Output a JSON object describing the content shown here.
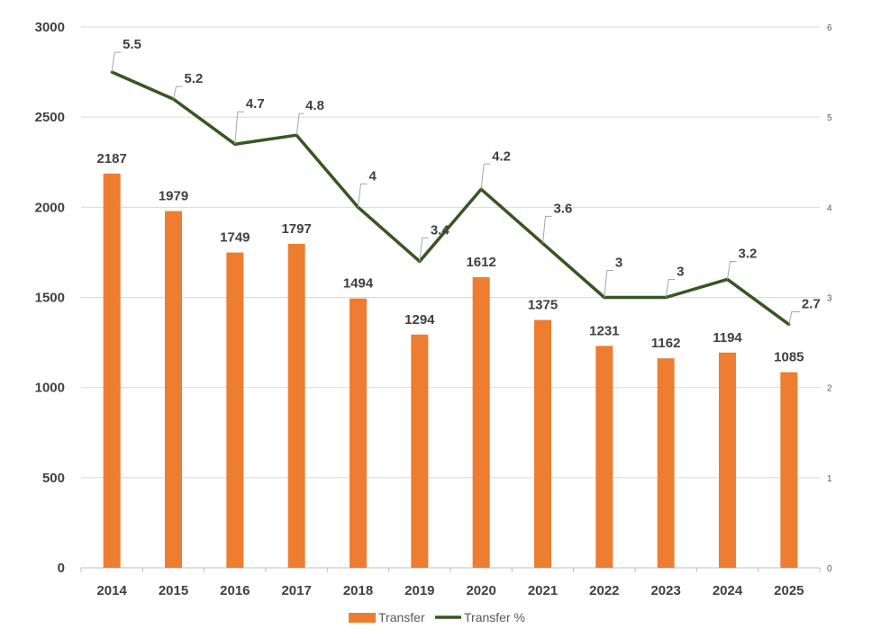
{
  "chart_data": {
    "type": "bar",
    "categories": [
      "2014",
      "2015",
      "2016",
      "2017",
      "2018",
      "2019",
      "2020",
      "2021",
      "2022",
      "2023",
      "2024",
      "2025"
    ],
    "series": [
      {
        "name": "Transfer",
        "type": "bar",
        "axis": "left",
        "color": "#ED7D31",
        "values": [
          2187,
          1979,
          1749,
          1797,
          1494,
          1294,
          1612,
          1375,
          1231,
          1162,
          1194,
          1085
        ]
      },
      {
        "name": "Transfer %",
        "type": "line",
        "axis": "right",
        "color": "#375623",
        "values": [
          5.5,
          5.2,
          4.7,
          4.8,
          4,
          3.4,
          4.2,
          3.6,
          3,
          3,
          3.2,
          2.7
        ]
      }
    ],
    "y_left": {
      "min": 0,
      "max": 3000,
      "ticks": [
        0,
        500,
        1000,
        1500,
        2000,
        2500,
        3000
      ]
    },
    "y_right": {
      "min": 0,
      "max": 6,
      "ticks": [
        0,
        1,
        2,
        3,
        4,
        5,
        6
      ]
    },
    "grid": true,
    "legend": "bottom"
  }
}
